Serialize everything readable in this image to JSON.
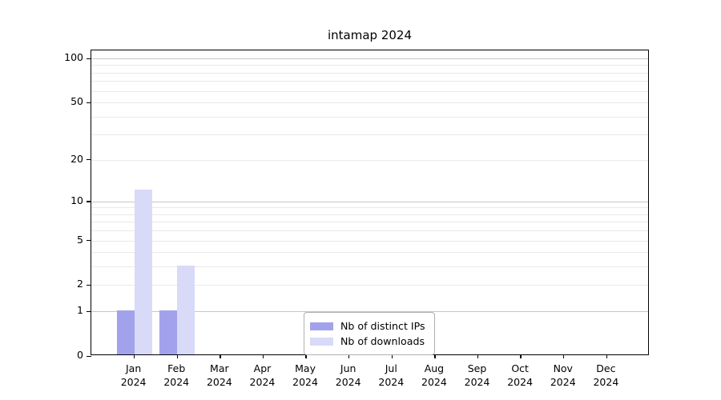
{
  "chart_data": {
    "type": "bar",
    "title": "intamap 2024",
    "categories": [
      "Jan",
      "Feb",
      "Mar",
      "Apr",
      "May",
      "Jun",
      "Jul",
      "Aug",
      "Sep",
      "Oct",
      "Nov",
      "Dec"
    ],
    "category_year": "2024",
    "series": [
      {
        "name": "Nb of distinct IPs",
        "color": "#a2a2ec",
        "values": [
          1,
          1,
          0,
          0,
          0,
          0,
          0,
          0,
          0,
          0,
          0,
          0
        ]
      },
      {
        "name": "Nb of downloads",
        "color": "#d9d9f8",
        "values": [
          12,
          3,
          0,
          0,
          0,
          0,
          0,
          0,
          0,
          0,
          0,
          0
        ]
      }
    ],
    "y_axis": {
      "scale": "log10(1+x)",
      "tick_values": [
        0,
        1,
        2,
        5,
        10,
        20,
        50,
        100
      ],
      "max_value": 100,
      "major_grid_values": [
        1,
        10,
        100
      ],
      "minor_grid_values": [
        2,
        3,
        4,
        5,
        6,
        7,
        8,
        9,
        20,
        30,
        40,
        50,
        60,
        70,
        80,
        90
      ]
    },
    "x_axis": {
      "label_line2": "2024"
    },
    "legend": {
      "position": "bottom-center-inside"
    },
    "colors": {
      "major_grid": "#c6c6c6",
      "minor_grid": "#e9e9e9",
      "axis": "#000000",
      "background": "#ffffff"
    }
  }
}
